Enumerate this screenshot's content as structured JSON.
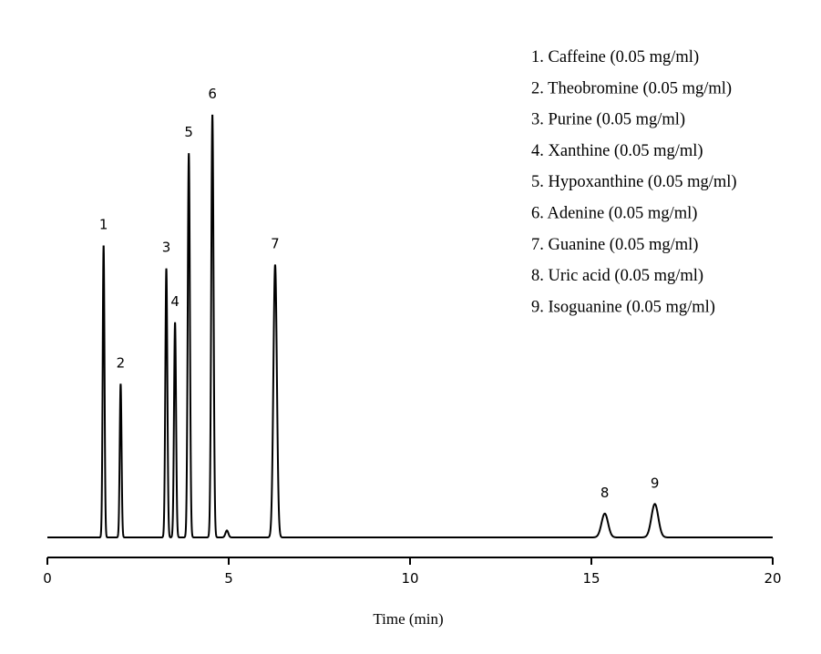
{
  "chart_data": {
    "type": "line",
    "title": "",
    "xlabel": "Time (min)",
    "ylabel": "",
    "xlim": [
      0,
      20
    ],
    "ylim": [
      0,
      1.1
    ],
    "x_ticks": [
      "0",
      "5",
      "10",
      "15",
      "20"
    ],
    "grid": false,
    "legend_position": "top-right",
    "legend": [
      "1. Caffeine (0.05 mg/ml)",
      "2. Theobromine (0.05 mg/ml)",
      "3. Purine (0.05 mg/ml)",
      "4. Xanthine (0.05 mg/ml)",
      "5. Hypoxanthine (0.05 mg/ml)",
      "6. Adenine (0.05 mg/ml)",
      "7. Guanine (0.05 mg/ml)",
      "8. Uric acid (0.05 mg/ml)",
      "9. Isoguanine (0.05 mg/ml)"
    ],
    "peaks": [
      {
        "label": "1",
        "time": 1.55,
        "height": 0.76,
        "width": 0.025
      },
      {
        "label": "2",
        "time": 2.02,
        "height": 0.4,
        "width": 0.025
      },
      {
        "label": "3",
        "time": 3.28,
        "height": 0.7,
        "width": 0.028
      },
      {
        "label": "4",
        "time": 3.52,
        "height": 0.56,
        "width": 0.028
      },
      {
        "label": "5",
        "time": 3.9,
        "height": 1.0,
        "width": 0.03
      },
      {
        "label": "6",
        "time": 4.55,
        "height": 1.1,
        "width": 0.032
      },
      {
        "label": "7",
        "time": 6.28,
        "height": 0.71,
        "width": 0.048
      },
      {
        "label": "8",
        "time": 15.37,
        "height": 0.062,
        "width": 0.09
      },
      {
        "label": "9",
        "time": 16.75,
        "height": 0.087,
        "width": 0.095
      }
    ],
    "minor_peaks": [
      {
        "time": 4.95,
        "height": 0.018,
        "width": 0.04
      }
    ],
    "line_color": "#000000"
  }
}
